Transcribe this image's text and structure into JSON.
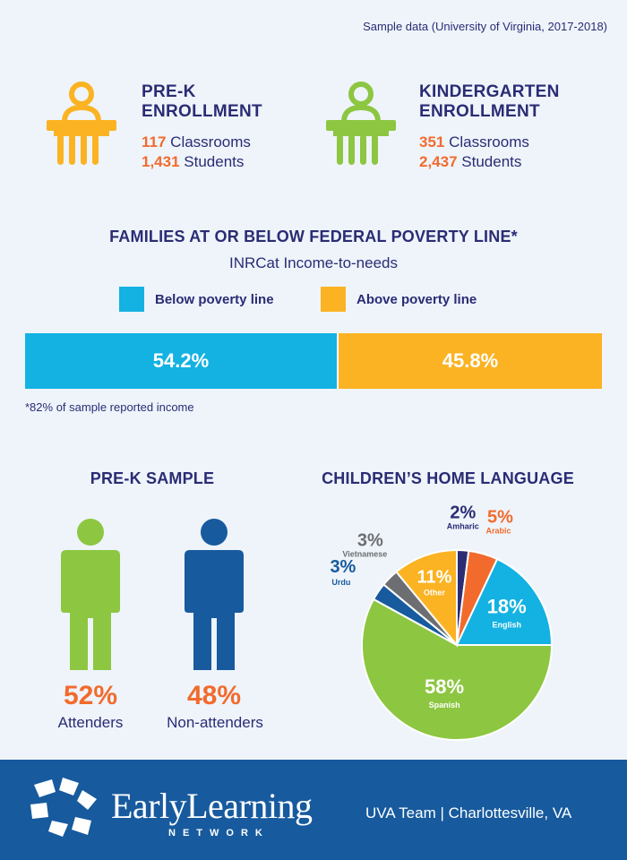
{
  "source_note": "Sample data (University of Virginia, 2017-2018)",
  "enrollment": {
    "prek": {
      "title_line1": "PRE-K",
      "title_line2": "ENROLLMENT",
      "classrooms_num": "117",
      "classrooms_label": "Classrooms",
      "students_num": "1,431",
      "students_label": "Students",
      "icon_color": "#fbb323"
    },
    "kinder": {
      "title_line1": "KINDERGARTEN",
      "title_line2": "ENROLLMENT",
      "classrooms_num": "351",
      "classrooms_label": "Classrooms",
      "students_num": "2,437",
      "students_label": "Students",
      "icon_color": "#8dc641"
    }
  },
  "poverty": {
    "title": "FAMILIES AT OR BELOW FEDERAL POVERTY LINE*",
    "subtitle": "INRCat Income-to-needs",
    "footnote": "*82% of sample reported income"
  },
  "prek_sample": {
    "title": "PRE-K SAMPLE",
    "attenders": {
      "pct": "52%",
      "label": "Attenders",
      "color": "#8dc641"
    },
    "non_attenders": {
      "pct": "48%",
      "label": "Non-attenders",
      "color": "#175a9e"
    }
  },
  "language": {
    "title": "CHILDREN’S HOME LANGUAGE"
  },
  "footer": {
    "logo_main": "EarlyLearning",
    "logo_sub": "NETWORK",
    "tagline": "UVA Team | Charlottesville, VA",
    "bg_color": "#175a9e"
  },
  "chart_data": [
    {
      "type": "bar",
      "orientation": "horizontal-stacked",
      "title": "FAMILIES AT OR BELOW FEDERAL POVERTY LINE*",
      "subtitle": "INRCat Income-to-needs",
      "series": [
        {
          "name": "Below poverty line",
          "value": 54.2,
          "label": "54.2%",
          "color": "#13b2e2"
        },
        {
          "name": "Above poverty line",
          "value": 45.8,
          "label": "45.8%",
          "color": "#fbb323"
        }
      ]
    },
    {
      "type": "pie",
      "title": "CHILDREN’S HOME LANGUAGE",
      "slices": [
        {
          "name": "Amharic",
          "value": 2,
          "label": "2%",
          "color": "#2b2c74",
          "label_color": "#2b2c74"
        },
        {
          "name": "Arabic",
          "value": 5,
          "label": "5%",
          "color": "#f26b2d",
          "label_color": "#f26b2d"
        },
        {
          "name": "English",
          "value": 18,
          "label": "18%",
          "color": "#13b2e2",
          "label_color": "#ffffff"
        },
        {
          "name": "Spanish",
          "value": 58,
          "label": "58%",
          "color": "#8dc641",
          "label_color": "#ffffff"
        },
        {
          "name": "Urdu",
          "value": 3,
          "label": "3%",
          "color": "#175a9e",
          "label_color": "#175a9e"
        },
        {
          "name": "Vietnamese",
          "value": 3,
          "label": "3%",
          "color": "#6d6e71",
          "label_color": "#6d6e71"
        },
        {
          "name": "Other",
          "value": 11,
          "label": "11%",
          "color": "#fbb323",
          "label_color": "#ffffff"
        }
      ]
    }
  ]
}
